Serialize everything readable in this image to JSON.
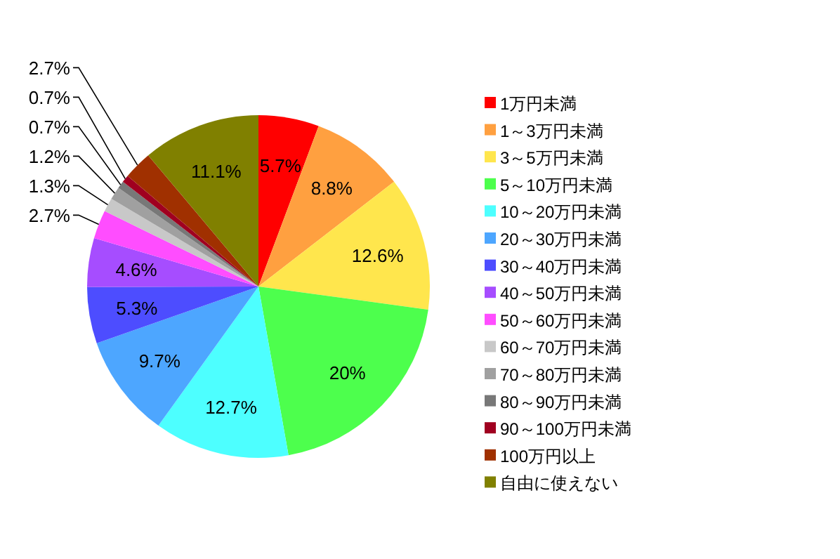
{
  "chart_data": {
    "type": "pie",
    "categories": [
      "1万円未満",
      "1～3万円未満",
      "3～5万円未満",
      "5～10万円未満",
      "10～20万円未満",
      "20～30万円未満",
      "30～40万円未満",
      "40～50万円未満",
      "50～60万円未満",
      "60～70万円未満",
      "70～80万円未満",
      "80～90万円未満",
      "90～100万円未満",
      "100万円以上",
      "自由に使えない"
    ],
    "values": [
      5.7,
      8.8,
      12.6,
      20,
      12.7,
      9.7,
      5.3,
      4.6,
      2.7,
      1.3,
      1.2,
      0.7,
      0.7,
      2.7,
      11.1
    ],
    "colors": [
      "#ff0000",
      "#ffa040",
      "#ffe64d",
      "#4dff4d",
      "#4dffff",
      "#4da6ff",
      "#4d4dff",
      "#a64dff",
      "#ff4dff",
      "#c8c8c8",
      "#a0a0a0",
      "#787878",
      "#a00020",
      "#a03000",
      "#808000"
    ],
    "value_labels": [
      "5.7%",
      "8.8%",
      "12.6%",
      "20%",
      "12.7%",
      "9.7%",
      "5.3%",
      "4.6%",
      "2.7%",
      "1.3%",
      "1.2%",
      "0.7%",
      "0.7%",
      "2.7%",
      "11.1%"
    ],
    "legend": "right"
  }
}
